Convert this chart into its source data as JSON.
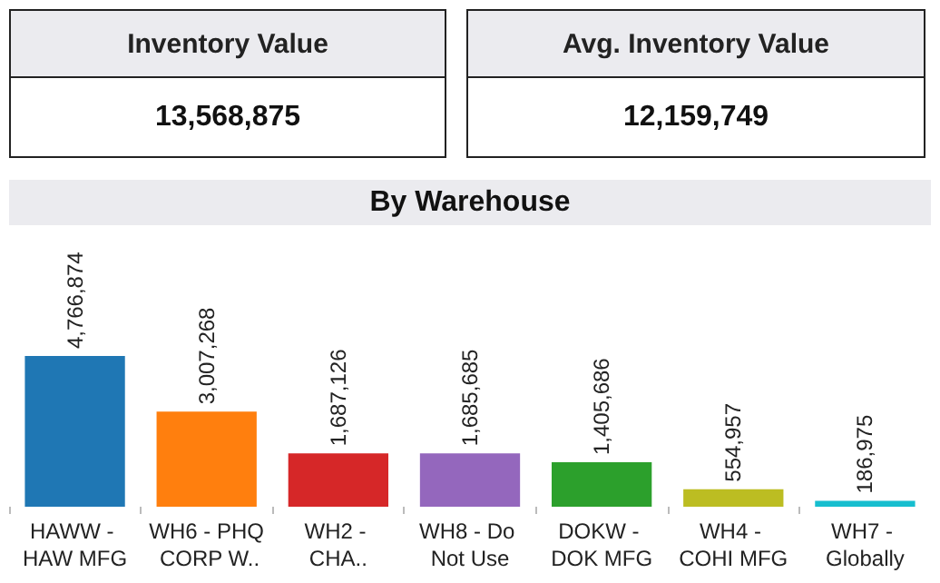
{
  "chart_data": [
    {
      "type": "other",
      "title": "Inventory Value",
      "annotations": [
        "13,568,875"
      ]
    },
    {
      "type": "other",
      "title": "Avg. Inventory Value",
      "annotations": [
        "12,159,749"
      ]
    },
    {
      "type": "bar",
      "title": "By Warehouse",
      "categories": [
        "HAWW - HAW MFG",
        "WH6 - PHQ CORP W..",
        "WH2 - CHA..",
        "WH8 - Do Not Use",
        "DOKW - DOK MFG",
        "WH4 - COHI MFG",
        "WH7 - Globally"
      ],
      "values": [
        4766874,
        3007268,
        1687126,
        1685685,
        1405686,
        554957,
        186975
      ],
      "colors": [
        "#1f77b4",
        "#ff7f0e",
        "#d62728",
        "#9467bd",
        "#2ca02c",
        "#bcbd22",
        "#17becf"
      ],
      "value_labels": [
        "4,766,874",
        "3,007,268",
        "1,687,126",
        "1,685,685",
        "1,405,686",
        "554,957",
        "186,975"
      ]
    }
  ]
}
